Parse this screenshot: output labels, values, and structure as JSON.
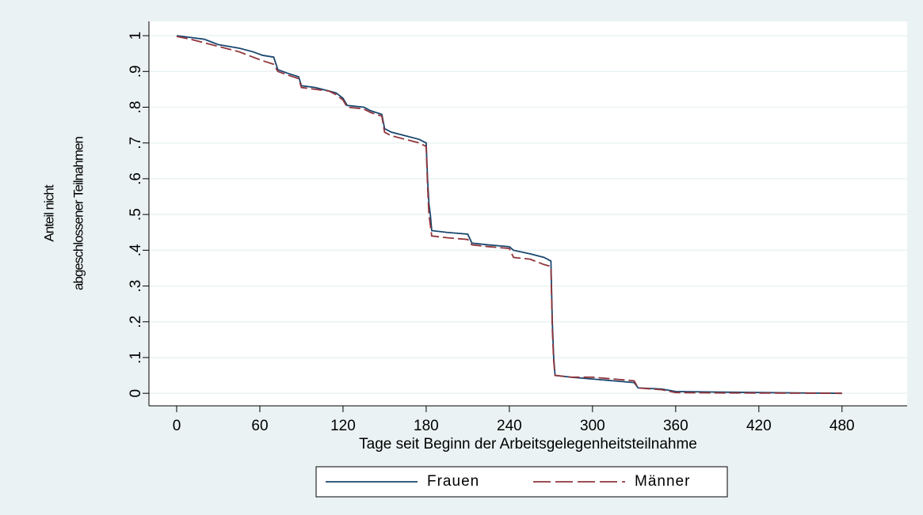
{
  "chart_data": {
    "type": "line",
    "x_label": "Tage seit Beginn der Arbeitsgelegenheitsteilnahme",
    "y_label": [
      "Anteil nicht",
      "abgeschlossener Teilnahmen"
    ],
    "x": [
      0,
      10,
      20,
      30,
      45,
      55,
      62,
      70,
      73,
      80,
      88,
      90,
      100,
      110,
      115,
      120,
      123,
      135,
      140,
      148,
      150,
      155,
      165,
      175,
      180,
      181,
      182,
      183,
      184,
      195,
      210,
      213,
      225,
      240,
      243,
      255,
      265,
      270,
      271,
      272,
      273,
      285,
      300,
      315,
      330,
      333,
      350,
      360,
      400,
      480
    ],
    "series": [
      {
        "name": "Frauen",
        "color": "#1a476f",
        "dash": false,
        "values": [
          1.0,
          0.995,
          0.99,
          0.975,
          0.965,
          0.955,
          0.945,
          0.94,
          0.905,
          0.895,
          0.885,
          0.86,
          0.855,
          0.845,
          0.84,
          0.825,
          0.805,
          0.8,
          0.79,
          0.78,
          0.74,
          0.73,
          0.72,
          0.71,
          0.7,
          0.6,
          0.53,
          0.5,
          0.455,
          0.45,
          0.445,
          0.42,
          0.415,
          0.41,
          0.4,
          0.39,
          0.38,
          0.37,
          0.2,
          0.1,
          0.05,
          0.045,
          0.04,
          0.035,
          0.03,
          0.015,
          0.012,
          0.005,
          0.003,
          0.0
        ]
      },
      {
        "name": "Männer",
        "color": "#90353b",
        "dash": true,
        "values": [
          0.998,
          0.99,
          0.98,
          0.97,
          0.955,
          0.94,
          0.93,
          0.92,
          0.9,
          0.89,
          0.88,
          0.855,
          0.85,
          0.845,
          0.835,
          0.82,
          0.8,
          0.795,
          0.785,
          0.775,
          0.73,
          0.72,
          0.71,
          0.7,
          0.69,
          0.58,
          0.5,
          0.47,
          0.44,
          0.435,
          0.43,
          0.415,
          0.41,
          0.405,
          0.38,
          0.375,
          0.36,
          0.355,
          0.18,
          0.09,
          0.05,
          0.045,
          0.045,
          0.04,
          0.035,
          0.015,
          0.01,
          0.002,
          0.001,
          0.0
        ]
      }
    ],
    "xlim": [
      -20,
      527
    ],
    "ylim": [
      -0.035,
      1.04
    ],
    "xticks": [
      0,
      60,
      120,
      180,
      240,
      300,
      360,
      420,
      480
    ],
    "yticks": [
      0,
      {
        "value": 0.1,
        "label": ".1"
      },
      {
        "value": 0.2,
        "label": ".2"
      },
      {
        "value": 0.3,
        "label": ".3"
      },
      {
        "value": 0.4,
        "label": ".4"
      },
      {
        "value": 0.5,
        "label": ".5"
      },
      {
        "value": 0.6,
        "label": ".6"
      },
      {
        "value": 0.7,
        "label": ".7"
      },
      {
        "value": 0.8,
        "label": ".8"
      },
      {
        "value": 0.9,
        "label": ".9"
      },
      1
    ],
    "grid": true,
    "legend": "bottom"
  }
}
